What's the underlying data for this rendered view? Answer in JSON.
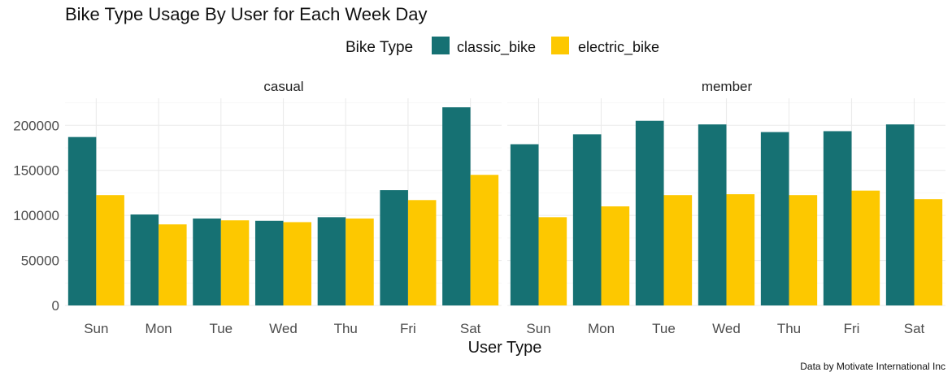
{
  "chart_data": {
    "type": "bar",
    "title": "Bike Type Usage By User for Each Week Day",
    "xlabel": "User Type",
    "ylabel": "",
    "caption": "Data by Motivate International Inc",
    "legend": {
      "title": "Bike Type",
      "position": "top",
      "entries": [
        "classic_bike",
        "electric_bike"
      ]
    },
    "ylim": [
      0,
      230000
    ],
    "y_ticks": [
      0,
      50000,
      100000,
      150000,
      200000
    ],
    "grid": true,
    "categories": [
      "Sun",
      "Mon",
      "Tue",
      "Wed",
      "Thu",
      "Fri",
      "Sat"
    ],
    "series_colors": {
      "classic_bike": "#167173",
      "electric_bike": "#fdc800"
    },
    "facets": [
      {
        "label": "casual",
        "series": [
          {
            "name": "classic_bike",
            "values": [
              187000,
              101000,
              96500,
              94000,
              98000,
              128000,
              220000
            ]
          },
          {
            "name": "electric_bike",
            "values": [
              122500,
              90000,
              94500,
              92500,
              96500,
              117000,
              145000
            ]
          }
        ]
      },
      {
        "label": "member",
        "series": [
          {
            "name": "classic_bike",
            "values": [
              179000,
              190000,
              205000,
              201000,
              192500,
              193500,
              201000
            ]
          },
          {
            "name": "electric_bike",
            "values": [
              98000,
              110000,
              122500,
              123500,
              122500,
              127500,
              118000
            ]
          }
        ]
      }
    ]
  }
}
